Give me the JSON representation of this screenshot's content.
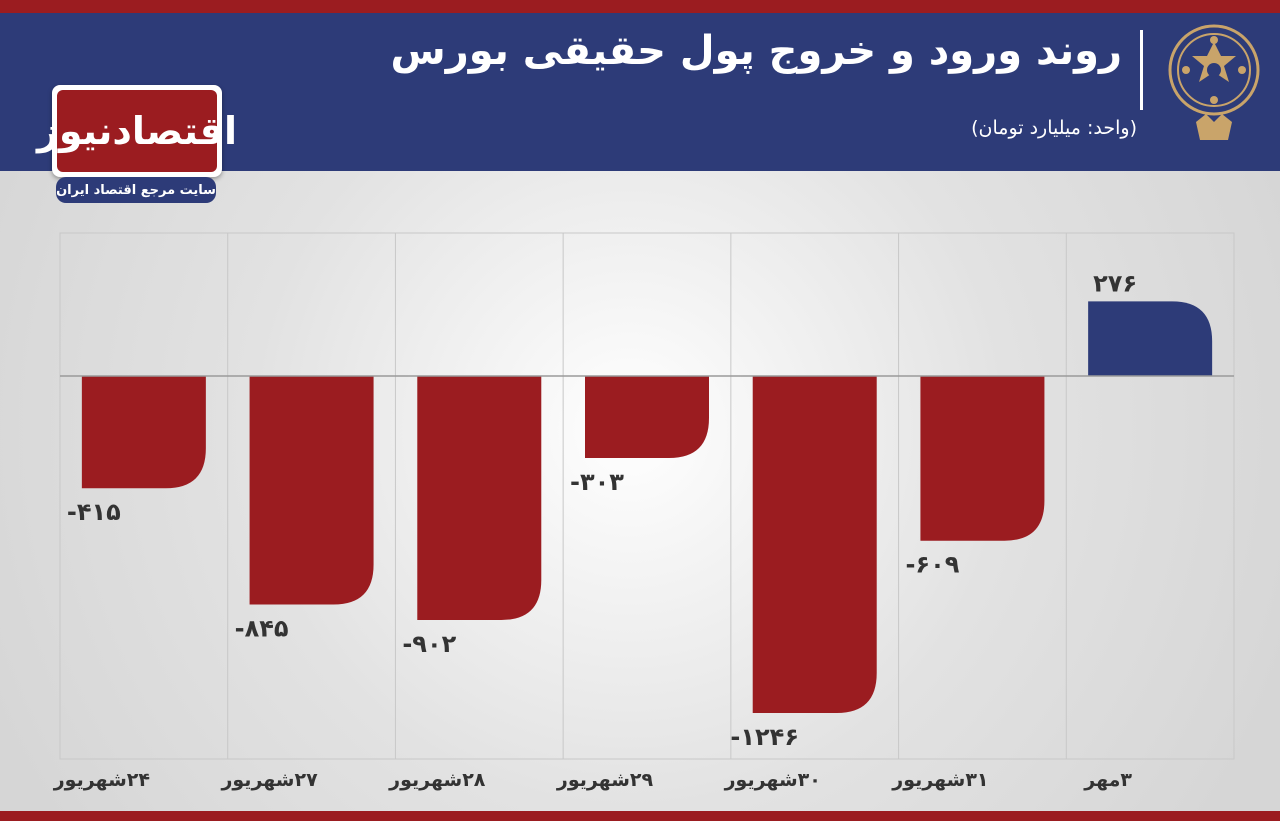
{
  "header": {
    "title": "روند ورود و خروج پول حقیقی بورس",
    "unit": "(واحد: میلیارد تومان)"
  },
  "branding": {
    "logo_text": "اقتصادنیوز",
    "tagline": "سایت مرجع اقتصاد ایران",
    "emblem_icon": "tehran-stock-exchange-emblem-icon"
  },
  "colors": {
    "negative": "#9b1c20",
    "positive": "#2d3b78",
    "header": "#2d3b78"
  },
  "chart_data": {
    "type": "bar",
    "categories": [
      "۳مهر",
      "۳۱شهریور",
      "۳۰شهریور",
      "۲۹شهریور",
      "۲۸شهریور",
      "۲۷شهریور",
      "۲۴شهریور"
    ],
    "values": [
      276,
      -609,
      -1246,
      -303,
      -902,
      -845,
      -415
    ],
    "value_labels": [
      "۲۷۶",
      "-۶۰۹",
      "-۱۲۴۶",
      "-۳۰۳",
      "-۹۰۲",
      "-۸۴۵",
      "-۴۱۵"
    ],
    "title": "روند ورود و خروج پول حقیقی بورس",
    "xlabel": "",
    "ylabel": "",
    "ylim": [
      -1246,
      276
    ],
    "grid": true,
    "x_direction": "right-to-left"
  }
}
